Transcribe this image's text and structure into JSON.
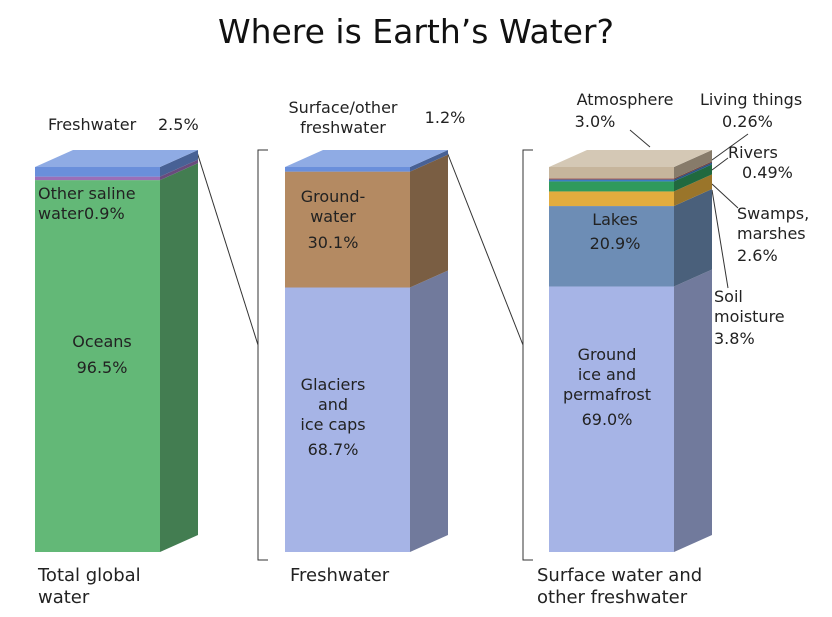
{
  "chart_data": {
    "type": "stacked3d",
    "title": "Where is Earth’s Water?",
    "columns": [
      {
        "label": "Total global\nwater",
        "names": [
          "Oceans",
          "Other saline\nwater",
          "Freshwater"
        ],
        "values": [
          96.5,
          0.9,
          2.5
        ],
        "value_labels": [
          "96.5%",
          "0.9%",
          "2.5%"
        ],
        "colors": [
          "#63b877",
          "#9a6fb8",
          "#6a8fdb"
        ]
      },
      {
        "label": "Freshwater",
        "names": [
          "Glaciers\nand\nice caps",
          "Ground-\nwater",
          "Surface/other\nfreshwater"
        ],
        "values": [
          68.7,
          30.1,
          1.2
        ],
        "value_labels": [
          "68.7%",
          "30.1%",
          "1.2%"
        ],
        "colors": [
          "#a6b4e6",
          "#b48a62",
          "#6a8fdb"
        ]
      },
      {
        "label": "Surface water and\nother freshwater",
        "names": [
          "Ground\nice and\npermafrost",
          "Lakes",
          "Soil\nmoisture",
          "Swamps,\nmarshes",
          "Rivers",
          "Living things",
          "Atmosphere"
        ],
        "values": [
          69.0,
          20.9,
          3.8,
          2.6,
          0.49,
          0.26,
          3.0
        ],
        "value_labels": [
          "69.0%",
          "20.9%",
          "3.8%",
          "2.6%",
          "0.49%",
          "0.26%",
          "3.0%"
        ],
        "colors": [
          "#a6b4e6",
          "#6d8db5",
          "#e2ac3e",
          "#2f9a5c",
          "#3a7dc4",
          "#9c4a48",
          "#c6b59c"
        ]
      }
    ]
  }
}
